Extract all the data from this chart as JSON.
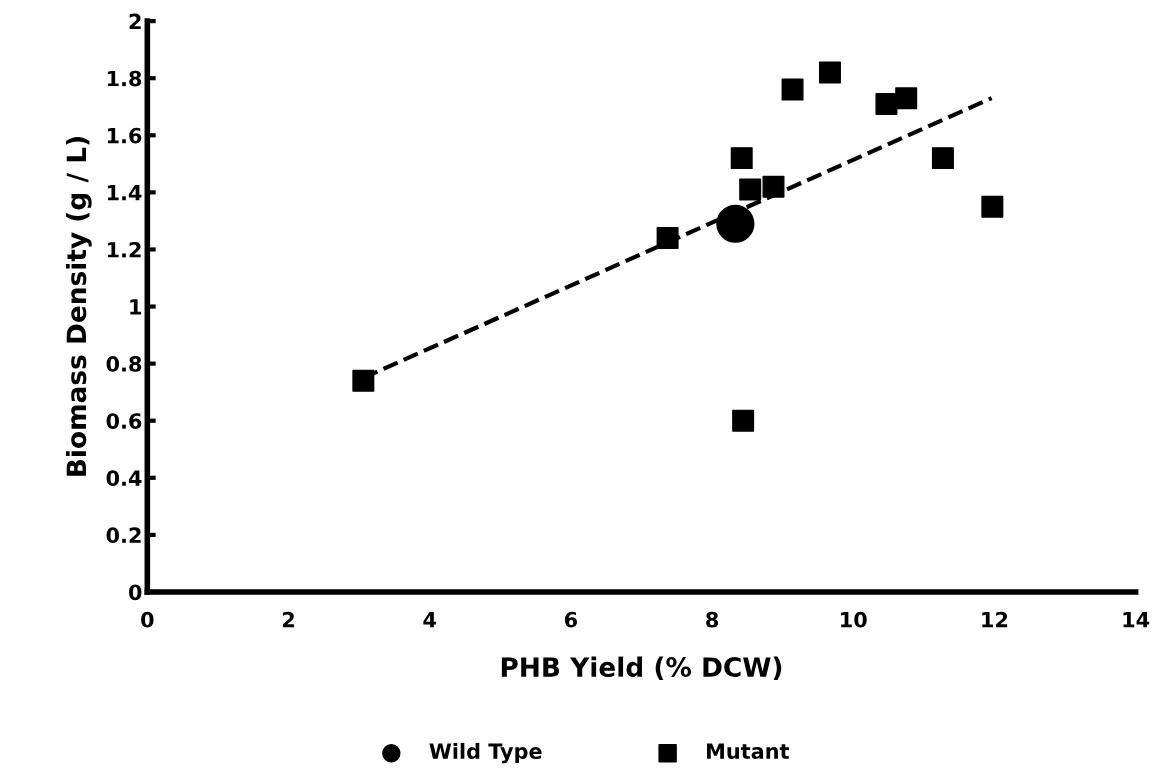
{
  "chart_data": {
    "type": "scatter",
    "xlabel": "PHB Yield (% DCW)",
    "ylabel": "Biomass Density (g / L)",
    "xlim": [
      0,
      14
    ],
    "xticks": [
      0,
      2,
      4,
      6,
      8,
      10,
      12,
      14
    ],
    "ylim": [
      0,
      2
    ],
    "yticks": [
      0,
      {
        "value": 0.2,
        "label": "0.2"
      },
      {
        "value": 0.4,
        "label": "0.4"
      },
      {
        "value": 0.6,
        "label": "0.6"
      },
      {
        "value": 0.8,
        "label": "0.8"
      },
      1,
      {
        "value": 1.2,
        "label": "1.2"
      },
      {
        "value": 1.4,
        "label": "1.4"
      },
      {
        "value": 1.6,
        "label": "1.6"
      },
      {
        "value": 1.8,
        "label": "1.8"
      },
      2
    ],
    "grid": false,
    "legend": "bottom",
    "series": [
      {
        "name": "Wild Type",
        "color": "#000000",
        "marker": "circle",
        "x": [
          8.33
        ],
        "values": [
          1.29
        ]
      },
      {
        "name": "Mutant",
        "color": "#000000",
        "marker": "square",
        "x": [
          3.06,
          7.37,
          8.44,
          8.42,
          8.54,
          8.87,
          9.14,
          9.67,
          10.47,
          10.75,
          11.27,
          11.97
        ],
        "values": [
          0.74,
          1.24,
          0.6,
          1.52,
          1.41,
          1.42,
          1.76,
          1.82,
          1.71,
          1.73,
          1.52,
          1.35
        ]
      },
      {
        "type": "line",
        "color": "#000000",
        "line_style": "dashed",
        "marker": "none",
        "x": [
          3.06,
          11.96
        ],
        "values": [
          0.75,
          1.73
        ]
      }
    ]
  }
}
